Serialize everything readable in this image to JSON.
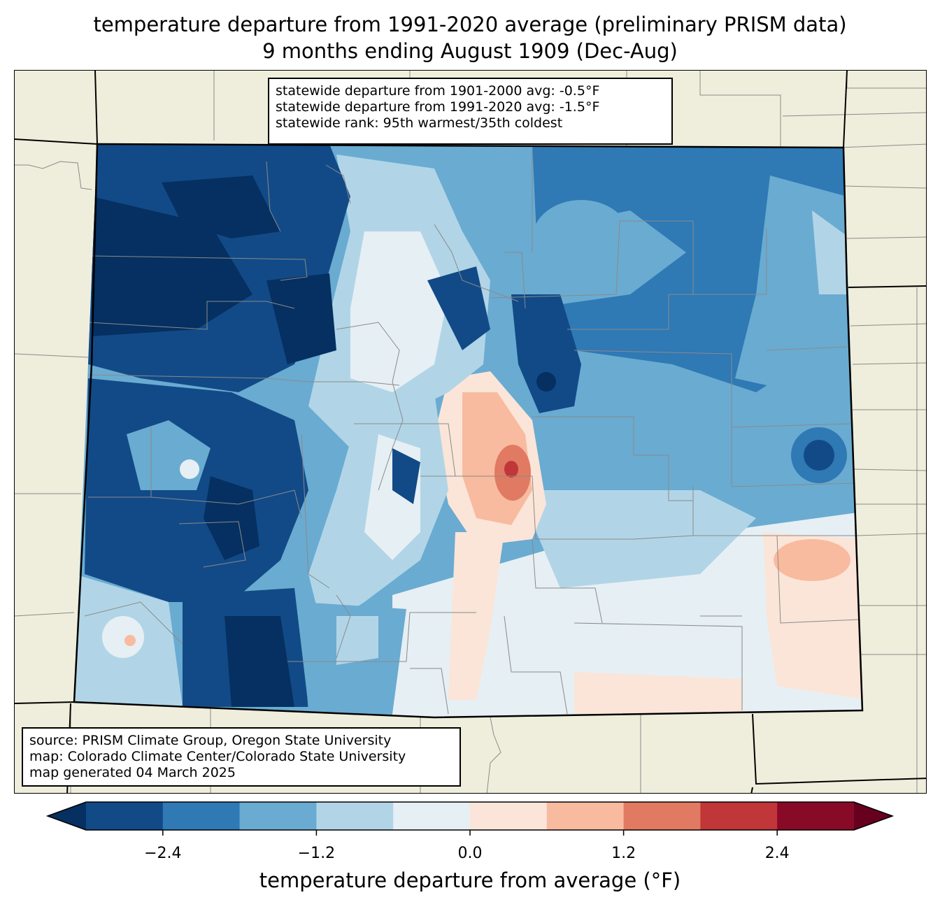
{
  "title": {
    "line1": "temperature departure from 1991-2020 average (preliminary PRISM data)",
    "line2": "9 months ending August 1909 (Dec-Aug)"
  },
  "stats": {
    "line1": "statewide departure from 1901-2000 avg: -0.5°F",
    "line2": "statewide departure from 1991-2020 avg: -1.5°F",
    "line3": "statewide rank: 95th warmest/35th coldest"
  },
  "source": {
    "line1": "source: PRISM Climate Group, Oregon State University",
    "line2": "map: Colorado Climate Center/Colorado State University",
    "line3": "map generated 04 March 2025"
  },
  "colorbar": {
    "label": "temperature departure from average (°F)",
    "ticks": [
      "−2.4",
      "−1.2",
      "0.0",
      "1.2",
      "2.4"
    ],
    "tick_values": [
      -2.4,
      -1.2,
      0.0,
      1.2,
      2.4
    ],
    "min": -3.0,
    "max": 3.0,
    "step": 0.6,
    "colors": [
      "#053061",
      "#124a87",
      "#2f79b5",
      "#6aabd1",
      "#b1d5e7",
      "#e6eff4",
      "#fbe5d8",
      "#f8bb9f",
      "#e17a62",
      "#c13639",
      "#880a27",
      "#67001f"
    ]
  },
  "map": {
    "land_color": "#efeedc",
    "boundary_color": "#888888"
  }
}
